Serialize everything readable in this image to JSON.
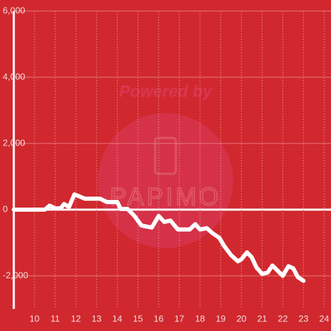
{
  "chart_data": {
    "type": "line",
    "watermark": [
      "Powered by",
      "PAPIMO"
    ],
    "x": [
      9,
      10.5,
      10.73,
      11,
      11.27,
      11.43,
      11.67,
      11.93,
      12.17,
      12.43,
      12.67,
      13.17,
      13.5,
      14,
      14.17,
      14.5,
      14.83,
      15.17,
      15.67,
      16,
      16.27,
      16.57,
      16.93,
      17.5,
      17.77,
      18,
      18.33,
      18.6,
      18.93,
      19.17,
      19.5,
      19.83,
      20,
      20.27,
      20.5,
      20.73,
      21,
      21.27,
      21.5,
      21.73,
      22,
      22.27,
      22.5,
      22.73,
      23
    ],
    "series": [
      {
        "color": "#ffffff",
        "values": [
          0,
          0,
          120,
          40,
          40,
          170,
          80,
          460,
          400,
          330,
          330,
          330,
          230,
          230,
          20,
          20,
          -190,
          -480,
          -540,
          -190,
          -370,
          -330,
          -600,
          -600,
          -440,
          -600,
          -560,
          -710,
          -850,
          -1100,
          -1375,
          -1560,
          -1500,
          -1290,
          -1440,
          -1750,
          -1940,
          -1900,
          -1690,
          -1830,
          -2000,
          -1710,
          -1770,
          -2040,
          -2150
        ]
      }
    ],
    "xlim": [
      9,
      24.33
    ],
    "xticks": [
      10,
      11,
      12,
      13,
      14,
      15,
      16,
      17,
      18,
      19,
      20,
      21,
      22,
      23,
      24
    ],
    "ylim": [
      -3000,
      6000
    ],
    "yticks": [
      {
        "value": -2000,
        "label": "-2,000"
      },
      0,
      {
        "value": 2000,
        "label": "2,000"
      },
      {
        "value": 4000,
        "label": "4,000"
      },
      {
        "value": 6000,
        "label": "6,000"
      }
    ],
    "grid": true,
    "background": "#d0282e"
  }
}
